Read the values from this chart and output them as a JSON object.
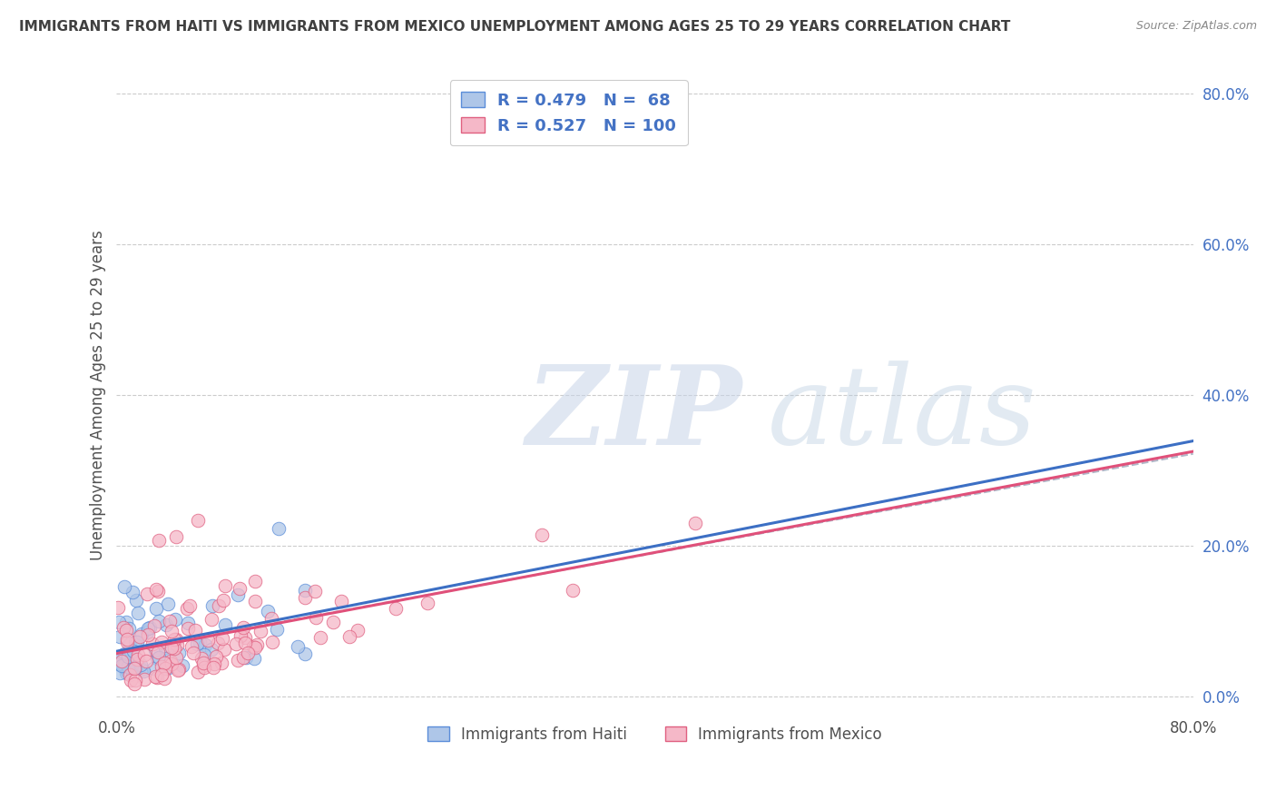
{
  "title": "IMMIGRANTS FROM HAITI VS IMMIGRANTS FROM MEXICO UNEMPLOYMENT AMONG AGES 25 TO 29 YEARS CORRELATION CHART",
  "source": "Source: ZipAtlas.com",
  "ylabel": "Unemployment Among Ages 25 to 29 years",
  "xlim": [
    0.0,
    0.8
  ],
  "ylim": [
    -0.02,
    0.82
  ],
  "yticks": [
    0.0,
    0.2,
    0.4,
    0.6,
    0.8
  ],
  "ytick_labels": [
    "0.0%",
    "20.0%",
    "40.0%",
    "60.0%",
    "80.0%"
  ],
  "haiti_R": 0.479,
  "haiti_N": 68,
  "mexico_R": 0.527,
  "mexico_N": 100,
  "haiti_color": "#aec6e8",
  "haiti_edge_color": "#5b8dd9",
  "haiti_line_color": "#3c6fc4",
  "mexico_color": "#f5b8c8",
  "mexico_edge_color": "#e06080",
  "mexico_line_color": "#e0507a",
  "trend_line_color": "#b0b8c8",
  "legend_label_haiti": "Immigrants from Haiti",
  "legend_label_mexico": "Immigrants from Mexico",
  "title_color": "#404040",
  "axis_label_color": "#4472c4",
  "watermark_zip": "ZIP",
  "watermark_atlas": "atlas",
  "background_color": "#ffffff"
}
